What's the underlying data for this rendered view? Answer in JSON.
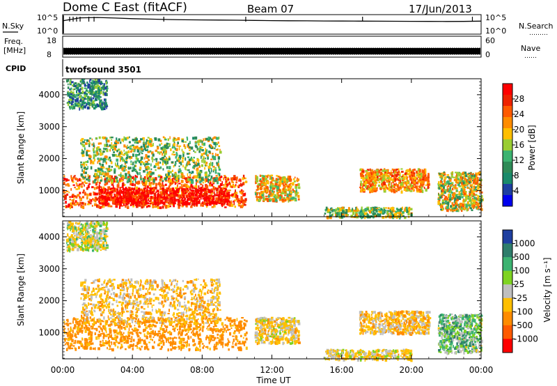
{
  "header": {
    "station": "Dome C East (fitACF)",
    "beam": "Beam 07",
    "date": "17/Jun/2013"
  },
  "sky_panel": {
    "left_label": "N.Sky",
    "right_label": "N.Search",
    "right_marker": "………",
    "left_ticks": [
      "10^5",
      "10^0"
    ],
    "right_ticks": [
      "10^5",
      "10^0"
    ]
  },
  "freq_panel": {
    "label_line1": "Freq.",
    "label_line2": "[MHz]",
    "right_label": "Nave",
    "right_marker": "……",
    "left_ticks": [
      "18",
      "8"
    ],
    "right_ticks": [
      "60",
      "0"
    ]
  },
  "cpid": {
    "label": "CPID",
    "value": "twofsound 3501"
  },
  "range_axis": {
    "label": "Slant Range [km]",
    "ticks": [
      "4000",
      "3000",
      "2000",
      "1000"
    ]
  },
  "time_axis": {
    "label": "Time UT",
    "ticks": [
      "00:00",
      "04:00",
      "08:00",
      "12:00",
      "16:00",
      "20:00",
      "00:00"
    ]
  },
  "power_scale": {
    "label": "Power [dB]",
    "ticks": [
      "28",
      "24",
      "20",
      "16",
      "12",
      "8",
      "4"
    ],
    "colors": [
      "#ff0000",
      "#ee2200",
      "#ff5a00",
      "#ff8c00",
      "#ffbf00",
      "#9acd32",
      "#3cb371",
      "#2e8b57",
      "#1a8a6a",
      "#1e3fa0",
      "#0000ee"
    ]
  },
  "velocity_scale": {
    "label": "Velocity [m s⁻¹]",
    "ticks": [
      "1000",
      "500",
      "100",
      "25",
      "-25",
      "-100",
      "-500",
      "-1000"
    ],
    "colors": [
      "#1e3fa0",
      "#2e7d6b",
      "#3cb371",
      "#7ed321",
      "#bfbfbf",
      "#ffbf00",
      "#ff8c00",
      "#ff5a00",
      "#ff0000"
    ]
  },
  "chart_data": [
    {
      "type": "line",
      "title": "Dome C East (fitACF) Beam 07 17/Jun/2013",
      "xlabel": "Time UT",
      "ylabel": "N.Sky",
      "y_scale": "log",
      "ylim": [
        1,
        100000
      ],
      "series": [
        {
          "name": "N.Sky",
          "x": [
            0,
            1,
            2,
            3,
            4,
            5,
            6,
            7,
            8,
            9,
            10,
            11,
            12,
            13,
            14,
            15,
            16,
            17,
            18,
            19,
            20,
            21,
            22,
            23,
            24
          ],
          "y": [
            3000,
            20000,
            25000,
            18000,
            12000,
            9000,
            7000,
            6000,
            5500,
            5000,
            4500,
            4000,
            3500,
            3200,
            3000,
            2800,
            2600,
            2500,
            2400,
            2300,
            2200,
            2100,
            2000,
            2100,
            2500
          ]
        }
      ]
    },
    {
      "type": "line",
      "xlabel": "Time UT",
      "ylabel": "Freq. [MHz]",
      "ylim": [
        8,
        18
      ],
      "series": [
        {
          "name": "Freq.",
          "x": [
            0,
            24
          ],
          "y": [
            10.5,
            10.5
          ]
        }
      ]
    },
    {
      "type": "heatmap",
      "xlabel": "Time UT",
      "ylabel": "Slant Range [km]",
      "xlim": [
        0,
        24
      ],
      "ylim": [
        180,
        4500
      ],
      "colorbar": {
        "label": "Power [dB]",
        "range": [
          0,
          30
        ]
      },
      "regions": [
        {
          "t_start": 0.0,
          "t_end": 10.5,
          "r_low": 500,
          "r_high": 1500,
          "value": 22
        },
        {
          "t_start": 2.0,
          "t_end": 9.5,
          "r_low": 600,
          "r_high": 1100,
          "value": 28
        },
        {
          "t_start": 1.0,
          "t_end": 9.0,
          "r_low": 1300,
          "r_high": 2700,
          "value": 14
        },
        {
          "t_start": 0.2,
          "t_end": 2.5,
          "r_low": 3600,
          "r_high": 4500,
          "value": 10
        },
        {
          "t_start": 11.0,
          "t_end": 13.5,
          "r_low": 700,
          "r_high": 1500,
          "value": 18
        },
        {
          "t_start": 15.0,
          "t_end": 20.0,
          "r_low": 180,
          "r_high": 500,
          "value": 14
        },
        {
          "t_start": 17.0,
          "t_end": 21.0,
          "r_low": 1000,
          "r_high": 1700,
          "value": 20
        },
        {
          "t_start": 21.5,
          "t_end": 24.0,
          "r_low": 400,
          "r_high": 1600,
          "value": 16
        }
      ]
    },
    {
      "type": "heatmap",
      "xlabel": "Time UT",
      "ylabel": "Slant Range [km]",
      "xlim": [
        0,
        24
      ],
      "ylim": [
        180,
        4500
      ],
      "colorbar": {
        "label": "Velocity [m s⁻¹]",
        "range": [
          -1000,
          1000
        ]
      },
      "regions": [
        {
          "t_start": 0.0,
          "t_end": 10.5,
          "r_low": 500,
          "r_high": 1500,
          "value": -150
        },
        {
          "t_start": 1.0,
          "t_end": 9.0,
          "r_low": 1300,
          "r_high": 2700,
          "value": -60
        },
        {
          "t_start": 0.2,
          "t_end": 2.5,
          "r_low": 3600,
          "r_high": 4500,
          "value": 0
        },
        {
          "t_start": 11.0,
          "t_end": 13.5,
          "r_low": 700,
          "r_high": 1500,
          "value": -40
        },
        {
          "t_start": 15.0,
          "t_end": 20.0,
          "r_low": 180,
          "r_high": 500,
          "value": -30
        },
        {
          "t_start": 17.0,
          "t_end": 21.0,
          "r_low": 1000,
          "r_high": 1700,
          "value": -60
        },
        {
          "t_start": 21.5,
          "t_end": 24.0,
          "r_low": 400,
          "r_high": 1600,
          "value": 50
        }
      ]
    }
  ]
}
